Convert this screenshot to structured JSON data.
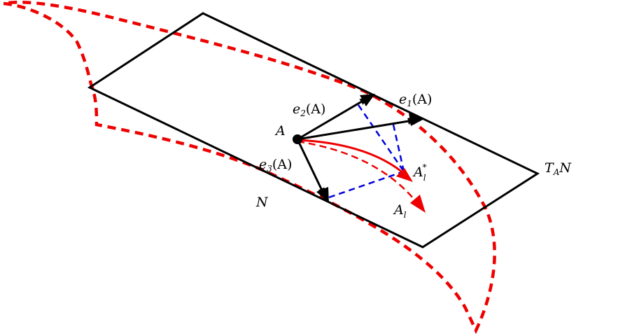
{
  "labels": {
    "point": "A",
    "e1": {
      "name": "e",
      "index": "1",
      "arg": "(A)"
    },
    "e2": {
      "name": "e",
      "index": "2",
      "arg": "(A)"
    },
    "e3": {
      "name": "e",
      "index": "3",
      "arg": "(A)"
    },
    "tangent_plane": {
      "name": "T",
      "sub": "A",
      "manifold": "N"
    },
    "manifold": "N",
    "a_star": {
      "name": "A",
      "sub": "l",
      "sup": "*"
    },
    "a_l": {
      "name": "A",
      "sub": "l"
    }
  },
  "colors": {
    "plane": "#000000",
    "manifold": "#ee0000",
    "curve": "#ee0000",
    "projection": "#0000dd",
    "vectors": "#000000"
  }
}
